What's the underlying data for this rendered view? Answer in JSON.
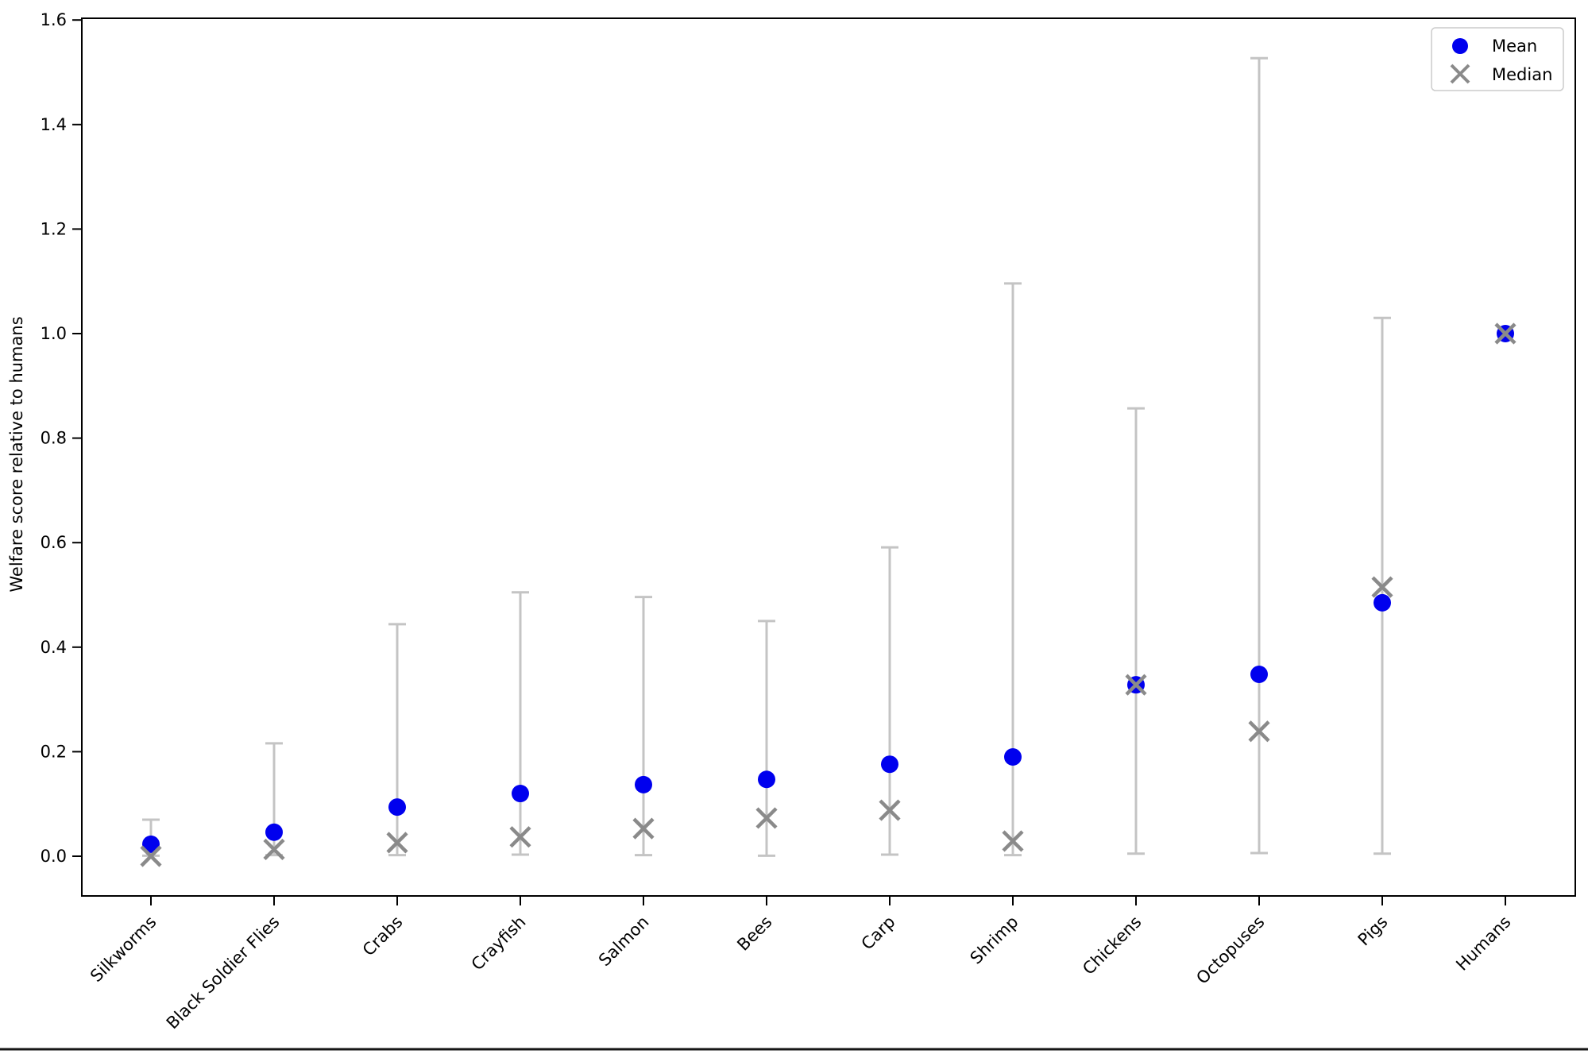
{
  "chart_data": {
    "type": "scatter",
    "title": "",
    "xlabel": "",
    "ylabel": "Welfare score relative to humans",
    "grid": false,
    "ylim": [
      -0.08,
      1.62
    ],
    "ytick_values": [
      0.0,
      0.2,
      0.4,
      0.6,
      0.8,
      1.0,
      1.2,
      1.4,
      1.6
    ],
    "ytick_labels": [
      "0.0",
      "0.2",
      "0.4",
      "0.6",
      "0.8",
      "1.0",
      "1.2",
      "1.4",
      "1.6"
    ],
    "categories": [
      "Silkworms",
      "Black Soldier Flies",
      "Crabs",
      "Crayfish",
      "Salmon",
      "Bees",
      "Carp",
      "Shrimp",
      "Chickens",
      "Octopuses",
      "Pigs",
      "Humans"
    ],
    "series": [
      {
        "name": "Mean",
        "marker": "circle",
        "color": "#0000ee",
        "values": [
          0.023,
          0.046,
          0.094,
          0.12,
          0.137,
          0.147,
          0.176,
          0.19,
          0.328,
          0.348,
          0.485,
          1.0
        ]
      },
      {
        "name": "Median",
        "marker": "x",
        "color": "#8a8a8a",
        "values": [
          0.0,
          0.013,
          0.026,
          0.037,
          0.053,
          0.073,
          0.088,
          0.029,
          0.328,
          0.239,
          0.515,
          1.0
        ]
      }
    ],
    "error_bars": {
      "color": "#c4c4c4",
      "applies_to": "Mean",
      "low": [
        0.001,
        0.002,
        0.002,
        0.003,
        0.002,
        0.001,
        0.003,
        0.002,
        0.005,
        0.006,
        0.005,
        null
      ],
      "high": [
        0.07,
        0.216,
        0.444,
        0.505,
        0.496,
        0.45,
        0.591,
        1.096,
        0.857,
        1.527,
        1.03,
        null
      ]
    },
    "legend": {
      "position": "upper-right",
      "entries": [
        "Mean",
        "Median"
      ]
    }
  },
  "page": {
    "bottom_rule_color": "#151515"
  }
}
